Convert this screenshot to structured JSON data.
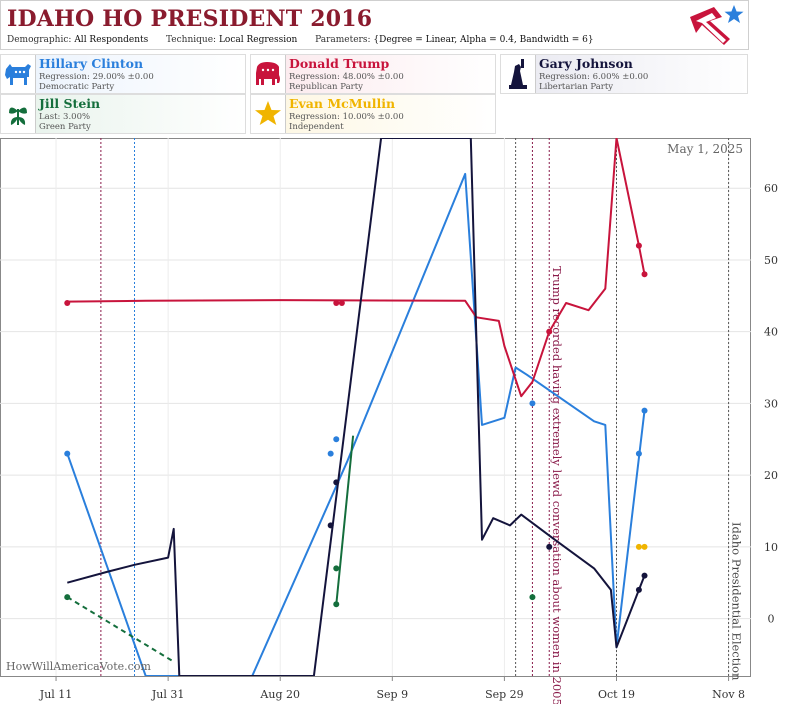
{
  "header": {
    "title_state": "IDAHO",
    "title_rest": "HO PRESIDENT 2016",
    "demographic_label": "Demographic:",
    "demographic_value": "All Respondents",
    "technique_label": "Technique:",
    "technique_value": "Local Regression",
    "parameters_label": "Parameters:",
    "parameters_value": "{Degree = Linear, Alpha = 0.4, Bandwidth = 6}"
  },
  "candidates": [
    {
      "name": "Hillary Clinton",
      "line1": "Regression: 29.00% ±0.00",
      "line2": "Democratic Party",
      "color": "#2a7fdc",
      "icon": "donkey-icon"
    },
    {
      "name": "Donald Trump",
      "line1": "Regression: 48.00% ±0.00",
      "line2": "Republican Party",
      "color": "#c8143c",
      "icon": "elephant-icon"
    },
    {
      "name": "Gary Johnson",
      "line1": "Regression: 6.00% ±0.00",
      "line2": "Libertarian Party",
      "color": "#14143c",
      "icon": "statue-of-liberty-icon"
    },
    {
      "name": "Jill Stein",
      "line1": "Last: 3.00%",
      "line2": "Green Party",
      "color": "#146e3c",
      "icon": "flower-icon"
    },
    {
      "name": "Evan McMullin",
      "line1": "Regression: 10.00% ±0.00",
      "line2": "Independent",
      "color": "#f0b400",
      "icon": "star-icon"
    }
  ],
  "chart_data": {
    "type": "line",
    "date_label": "May 1, 2025",
    "watermark": "HowWillAmericaVote.com",
    "x_tick_labels": [
      "Jul 11",
      "Jul 31",
      "Aug 20",
      "Sep 9",
      "Sep 29",
      "Oct 19",
      "Nov 8"
    ],
    "x_tick_dates": [
      "2016-07-11",
      "2016-07-31",
      "2016-08-20",
      "2016-09-09",
      "2016-09-29",
      "2016-10-19",
      "2016-11-08"
    ],
    "x_range": [
      "2016-07-01",
      "2016-11-12"
    ],
    "y_tick_labels": [
      "0",
      "10",
      "20",
      "30",
      "40",
      "50",
      "60"
    ],
    "y_range": [
      -8,
      67
    ],
    "grid": true,
    "events": [
      {
        "date": "2016-07-19",
        "color": "#8a1b4a",
        "label": ""
      },
      {
        "date": "2016-07-25",
        "color": "#2a7fdc",
        "label": ""
      },
      {
        "date": "2016-10-01",
        "color": "#555555",
        "label": ""
      },
      {
        "date": "2016-10-04",
        "color": "#8a1b4a",
        "label": ""
      },
      {
        "date": "2016-10-07",
        "color": "#8a1b4a",
        "label": "Trump recorded having extremely lewd conversation about women in 2005"
      },
      {
        "date": "2016-10-19",
        "color": "#555555",
        "label": ""
      },
      {
        "date": "2016-11-08",
        "color": "#555555",
        "label": "Idaho Presidential Election"
      }
    ],
    "series": [
      {
        "name": "Hillary Clinton",
        "color": "#2a7fdc",
        "line": [
          [
            "2016-07-13",
            23
          ],
          [
            "2016-07-27",
            -8
          ],
          [
            "2016-08-15",
            -8
          ],
          [
            "2016-09-01",
            22
          ],
          [
            "2016-09-22",
            62
          ],
          [
            "2016-09-25",
            27
          ],
          [
            "2016-09-29",
            28
          ],
          [
            "2016-10-01",
            35
          ],
          [
            "2016-10-03",
            34
          ],
          [
            "2016-10-15",
            27.5
          ],
          [
            "2016-10-17",
            27
          ],
          [
            "2016-10-19",
            -4
          ],
          [
            "2016-10-24",
            29
          ]
        ],
        "points": [
          [
            "2016-07-13",
            23
          ],
          [
            "2016-08-29",
            23
          ],
          [
            "2016-08-30",
            25
          ],
          [
            "2016-10-04",
            30
          ],
          [
            "2016-10-23",
            23
          ],
          [
            "2016-10-24",
            29
          ]
        ]
      },
      {
        "name": "Donald Trump",
        "color": "#c8143c",
        "line": [
          [
            "2016-07-13",
            44.2
          ],
          [
            "2016-07-27",
            44.3
          ],
          [
            "2016-08-20",
            44.4
          ],
          [
            "2016-09-22",
            44.3
          ],
          [
            "2016-09-24",
            42
          ],
          [
            "2016-09-28",
            41.5
          ],
          [
            "2016-09-29",
            38
          ],
          [
            "2016-10-02",
            31
          ],
          [
            "2016-10-04",
            33
          ],
          [
            "2016-10-07",
            40
          ],
          [
            "2016-10-10",
            44
          ],
          [
            "2016-10-14",
            43
          ],
          [
            "2016-10-17",
            46
          ],
          [
            "2016-10-19",
            67
          ],
          [
            "2016-10-23",
            52
          ],
          [
            "2016-10-24",
            48
          ]
        ],
        "points": [
          [
            "2016-07-13",
            44
          ],
          [
            "2016-08-30",
            44
          ],
          [
            "2016-08-31",
            44
          ],
          [
            "2016-10-07",
            40
          ],
          [
            "2016-10-23",
            52
          ],
          [
            "2016-10-24",
            48
          ]
        ]
      },
      {
        "name": "Gary Johnson",
        "color": "#14143c",
        "line": [
          [
            "2016-07-13",
            5
          ],
          [
            "2016-07-20",
            6.5
          ],
          [
            "2016-07-25",
            7.5
          ],
          [
            "2016-07-31",
            8.5
          ],
          [
            "2016-08-01",
            12.5
          ],
          [
            "2016-08-02",
            -8
          ],
          [
            "2016-08-26",
            -8
          ],
          [
            "2016-09-07",
            67
          ],
          [
            "2016-09-23",
            67
          ],
          [
            "2016-09-25",
            11
          ],
          [
            "2016-09-27",
            14
          ],
          [
            "2016-09-30",
            13
          ],
          [
            "2016-10-02",
            14.5
          ],
          [
            "2016-10-08",
            11
          ],
          [
            "2016-10-15",
            7
          ],
          [
            "2016-10-18",
            4
          ],
          [
            "2016-10-19",
            -4
          ],
          [
            "2016-10-23",
            4
          ],
          [
            "2016-10-24",
            6
          ]
        ],
        "points": [
          [
            "2016-08-29",
            13
          ],
          [
            "2016-08-30",
            19
          ],
          [
            "2016-10-07",
            10
          ],
          [
            "2016-10-23",
            4
          ],
          [
            "2016-10-24",
            6
          ]
        ]
      },
      {
        "name": "Jill Stein",
        "color": "#146e3c",
        "line": [
          [
            "2016-08-30",
            2
          ],
          [
            "2016-09-02",
            25.5
          ]
        ],
        "dashed": [
          [
            "2016-07-13",
            3
          ],
          [
            "2016-08-01",
            -6
          ]
        ],
        "points": [
          [
            "2016-07-13",
            3
          ],
          [
            "2016-08-30",
            2
          ],
          [
            "2016-08-30",
            7
          ],
          [
            "2016-10-04",
            3
          ]
        ]
      },
      {
        "name": "Evan McMullin",
        "color": "#f0b400",
        "line": [],
        "points": [
          [
            "2016-10-23",
            10
          ],
          [
            "2016-10-24",
            10
          ]
        ]
      }
    ]
  }
}
